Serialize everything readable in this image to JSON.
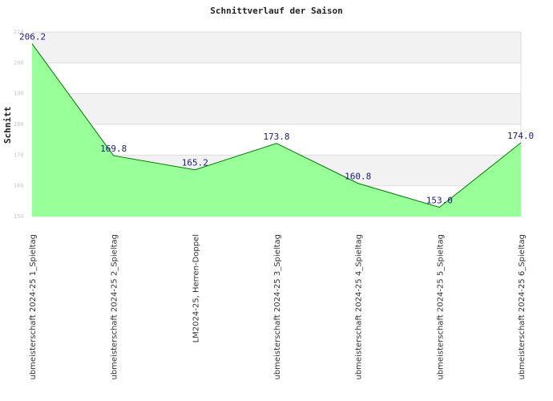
{
  "chart_data": {
    "type": "area",
    "title": "Schnittverlauf der Saison",
    "xlabel": "",
    "ylabel": "Schnitt",
    "ylim": [
      150,
      210
    ],
    "yticks": [
      150,
      160,
      170,
      180,
      190,
      200,
      210
    ],
    "ytick_labels": [
      "150",
      "160",
      "170",
      "180",
      "190",
      "200",
      "210"
    ],
    "grid": true,
    "categories": [
      "ubmeisterschaft 2024-25   1_Spieltag",
      "ubmeisterschaft 2024-25   2_Spieltag",
      "LM2024-25, Herren-Doppel",
      "ubmeisterschaft 2024-25   3_Spieltag",
      "ubmeisterschaft 2024-25   4_Spieltag",
      "ubmeisterschaft 2024-25   5_Spieltag",
      "ubmeisterschaft 2024-25   6_Spieltag"
    ],
    "values": [
      206.2,
      169.8,
      165.2,
      173.8,
      160.8,
      153.0,
      174.0
    ],
    "data_labels": [
      "206.2",
      "169.8",
      "165.2",
      "173.8",
      "160.8",
      "153.0",
      "174.0"
    ],
    "colors": {
      "fill": "#99ff99",
      "line": "#007a00",
      "band": "#f2f2f2",
      "grid": "#dddddd",
      "label": "#1a1a80"
    }
  }
}
